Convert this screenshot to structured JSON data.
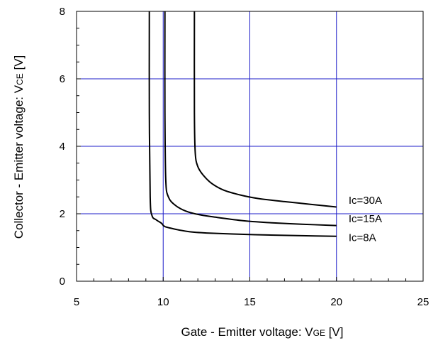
{
  "chart_data": {
    "type": "line",
    "title": "",
    "xlabel": "Gate - Emitter voltage: V",
    "xlabel_sub": "GE",
    "xlabel_unit": " [V]",
    "ylabel": "Collector - Emitter voltage: V",
    "ylabel_sub": "CE",
    "ylabel_unit": " [V]",
    "xlim": [
      5,
      25
    ],
    "ylim": [
      0,
      8
    ],
    "x_ticks": [
      "5",
      "10",
      "15",
      "20",
      "25"
    ],
    "y_ticks": [
      "0",
      "2",
      "4",
      "6",
      "8"
    ],
    "grid": true,
    "legend": "none",
    "colors": {
      "grid": "#1c1cc8",
      "series": "#000000",
      "frame": "#000000"
    },
    "series": [
      {
        "name": "Ic=30A",
        "points": [
          [
            11.8,
            8.0
          ],
          [
            11.8,
            5.0
          ],
          [
            11.85,
            3.8
          ],
          [
            12.0,
            3.4
          ],
          [
            12.3,
            3.15
          ],
          [
            12.8,
            2.9
          ],
          [
            13.5,
            2.7
          ],
          [
            14.5,
            2.55
          ],
          [
            15.5,
            2.45
          ],
          [
            17.0,
            2.36
          ],
          [
            18.5,
            2.28
          ],
          [
            20.0,
            2.2
          ]
        ]
      },
      {
        "name": "Ic=15A",
        "points": [
          [
            10.1,
            8.0
          ],
          [
            10.1,
            5.0
          ],
          [
            10.15,
            3.0
          ],
          [
            10.3,
            2.5
          ],
          [
            10.7,
            2.25
          ],
          [
            11.3,
            2.08
          ],
          [
            12.0,
            1.98
          ],
          [
            13.0,
            1.9
          ],
          [
            14.5,
            1.8
          ],
          [
            16.0,
            1.74
          ],
          [
            18.0,
            1.69
          ],
          [
            20.0,
            1.65
          ]
        ]
      },
      {
        "name": "Ic=8A",
        "points": [
          [
            9.2,
            8.0
          ],
          [
            9.2,
            5.0
          ],
          [
            9.25,
            2.5
          ],
          [
            9.35,
            1.95
          ],
          [
            9.6,
            1.82
          ],
          [
            9.9,
            1.72
          ],
          [
            10.1,
            1.62
          ],
          [
            10.8,
            1.53
          ],
          [
            11.5,
            1.47
          ],
          [
            12.5,
            1.43
          ],
          [
            14.0,
            1.4
          ],
          [
            16.0,
            1.37
          ],
          [
            18.0,
            1.35
          ],
          [
            20.0,
            1.33
          ]
        ]
      }
    ],
    "series_labels": [
      {
        "text": "Ic=30A",
        "x": 20.7,
        "y": 2.4
      },
      {
        "text": "Ic=15A",
        "x": 20.7,
        "y": 1.85
      },
      {
        "text": "Ic=8A",
        "x": 20.7,
        "y": 1.3
      }
    ]
  }
}
